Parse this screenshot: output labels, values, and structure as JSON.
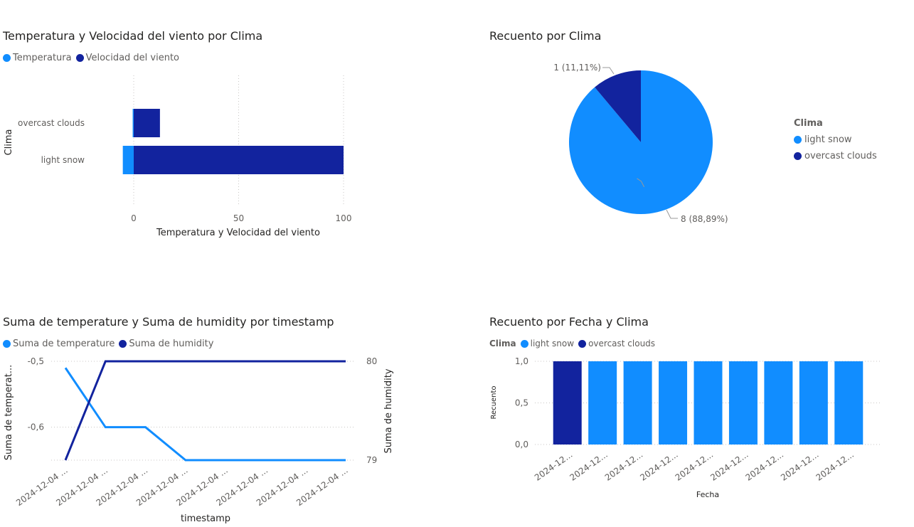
{
  "colors": {
    "light": "#118dff",
    "dark": "#12239e",
    "grid": "#c8c6c4",
    "axis_text": "#605e5c"
  },
  "chart_data": [
    {
      "type": "bar",
      "orientation": "horizontal",
      "title": "Temperatura y Velocidad del viento por Clima",
      "xlabel": "Temperatura y Velocidad del viento",
      "ylabel": "Clima",
      "categories": [
        "overcast clouds",
        "light snow"
      ],
      "series": [
        {
          "name": "Temperatura",
          "values": [
            -0.5,
            -5.2
          ]
        },
        {
          "name": "Velocidad del viento",
          "values": [
            12.5,
            100
          ]
        }
      ],
      "xticks": [
        "0",
        "50",
        "100"
      ],
      "xlim": [
        -5.2,
        100
      ],
      "legend": "top-left",
      "grid": true
    },
    {
      "type": "pie",
      "title": "Recuento por Clima",
      "legend_title": "Clima",
      "labels": [
        "light snow",
        "overcast clouds"
      ],
      "values": [
        8,
        1
      ],
      "data_labels": [
        "8 (88,89%)",
        "1 (11,11%)"
      ],
      "legend": "right"
    },
    {
      "type": "line",
      "title": "Suma de temperature y Suma de humidity por timestamp",
      "xlabel": "timestamp",
      "ylabel_left": "Suma de temperat...",
      "ylabel_right": "Suma de humidity",
      "x": [
        "2024-12-04 ...",
        "2024-12-04 ...",
        "2024-12-04 ...",
        "2024-12-04 ...",
        "2024-12-04 ...",
        "2024-12-04 ...",
        "2024-12-04 ...",
        "2024-12-04 ..."
      ],
      "series": [
        {
          "name": "Suma de temperature",
          "axis": "left",
          "values": [
            -0.51,
            -0.6,
            -0.6,
            -0.65,
            -0.65,
            -0.65,
            -0.65,
            -0.65
          ]
        },
        {
          "name": "Suma de humidity",
          "axis": "right",
          "values": [
            79,
            80,
            80,
            80,
            80,
            80,
            80,
            80
          ]
        }
      ],
      "yticks_left": [
        "-0,5",
        "-0,6"
      ],
      "ylim_left": [
        -0.65,
        -0.5
      ],
      "yticks_right": [
        "80",
        "79"
      ],
      "ylim_right": [
        79,
        80
      ],
      "legend": "top-left",
      "grid": true
    },
    {
      "type": "bar",
      "title": "Recuento por Fecha y Clima",
      "legend_title": "Clima",
      "xlabel": "Fecha",
      "ylabel": "Recuento",
      "categories": [
        "2024-12...",
        "2024-12...",
        "2024-12...",
        "2024-12...",
        "2024-12...",
        "2024-12...",
        "2024-12...",
        "2024-12...",
        "2024-12..."
      ],
      "series": [
        {
          "name": "light snow",
          "values": [
            0,
            1,
            1,
            1,
            1,
            1,
            1,
            1,
            1
          ]
        },
        {
          "name": "overcast clouds",
          "values": [
            1,
            0,
            0,
            0,
            0,
            0,
            0,
            0,
            0
          ]
        }
      ],
      "yticks": [
        "0,0",
        "0,5",
        "1,0"
      ],
      "ylim": [
        0,
        1
      ],
      "legend": "top-left",
      "grid": true
    }
  ]
}
